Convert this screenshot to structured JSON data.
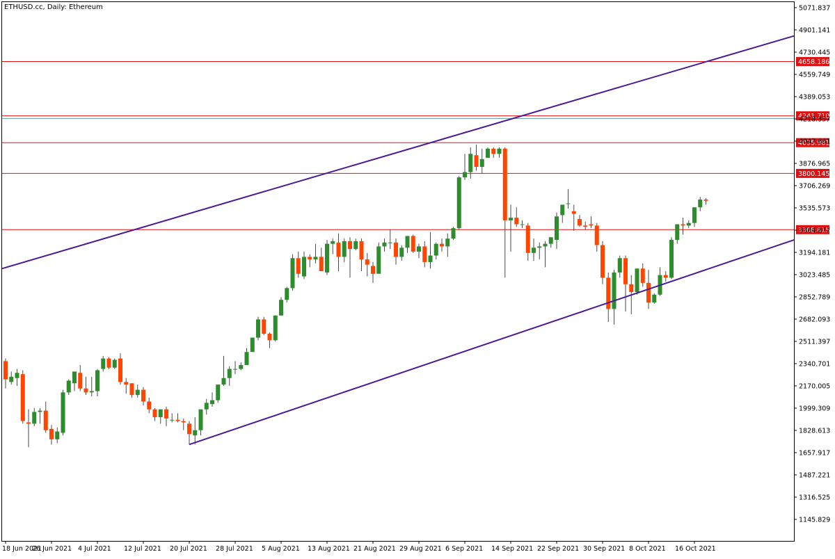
{
  "header": {
    "symbol_label": "ETHUSD.cc, Daily:  Ethereum"
  },
  "colors": {
    "background": "#ffffff",
    "frame": "#000000",
    "up": "#2e8b2e",
    "down": "#ff4500",
    "wick": "#4a4a4a",
    "level": "#e01010",
    "channel": "#4b1a94",
    "bid": "#5f9ea0"
  },
  "chart_data": {
    "type": "candlestick",
    "title": "",
    "symbol": "ETHUSD.cc",
    "timeframe": "Daily",
    "description": "Ethereum",
    "ylim": [
      1060,
      5130
    ],
    "price_axis_ticks": [
      "5071.837",
      "4901.141",
      "4730.445",
      "4559.749",
      "4389.053",
      "4218.357",
      "4047.661",
      "3876.965",
      "3706.269",
      "3535.573",
      "3364.877",
      "3194.181",
      "3023.485",
      "2852.789",
      "2682.093",
      "2511.397",
      "2340.701",
      "2170.005",
      "1999.309",
      "1828.613",
      "1657.917",
      "1487.221",
      "1316.525",
      "1145.829"
    ],
    "date_axis_ticks": [
      "18 Jun 2021",
      "26 Jun 2021",
      "4 Jul 2021",
      "12 Jul 2021",
      "20 Jul 2021",
      "28 Jul 2021",
      "5 Aug 2021",
      "13 Aug 2021",
      "21 Aug 2021",
      "29 Aug 2021",
      "6 Sep 2021",
      "14 Sep 2021",
      "22 Sep 2021",
      "30 Sep 2021",
      "8 Oct 2021",
      "16 Oct 2021"
    ],
    "level_labels": [
      "4658.186",
      "4241.710",
      "4035.981",
      "3800.145",
      "3368.615"
    ],
    "levels": [
      4658.186,
      4241.71,
      4035.981,
      3800.145,
      3368.615
    ],
    "bid_line": 4222,
    "candles": [
      {
        "date": "2021-06-18",
        "o": 2360,
        "h": 2380,
        "l": 2150,
        "c": 2220
      },
      {
        "date": "2021-06-19",
        "o": 2200,
        "h": 2280,
        "l": 2180,
        "c": 2240
      },
      {
        "date": "2021-06-20",
        "o": 2230,
        "h": 2300,
        "l": 2170,
        "c": 2270
      },
      {
        "date": "2021-06-21",
        "o": 2260,
        "h": 2290,
        "l": 1880,
        "c": 1900
      },
      {
        "date": "2021-06-22",
        "o": 1890,
        "h": 1990,
        "l": 1700,
        "c": 1880
      },
      {
        "date": "2021-06-23",
        "o": 1880,
        "h": 2000,
        "l": 1860,
        "c": 1970
      },
      {
        "date": "2021-06-24",
        "o": 1970,
        "h": 2000,
        "l": 1880,
        "c": 1980
      },
      {
        "date": "2021-06-25",
        "o": 1980,
        "h": 2050,
        "l": 1810,
        "c": 1830
      },
      {
        "date": "2021-06-26",
        "o": 1840,
        "h": 1870,
        "l": 1720,
        "c": 1760
      },
      {
        "date": "2021-06-27",
        "o": 1760,
        "h": 1850,
        "l": 1730,
        "c": 1820
      },
      {
        "date": "2021-06-28",
        "o": 1810,
        "h": 2140,
        "l": 1790,
        "c": 2120
      },
      {
        "date": "2021-06-29",
        "o": 2120,
        "h": 2220,
        "l": 2100,
        "c": 2210
      },
      {
        "date": "2021-06-30",
        "o": 2190,
        "h": 2280,
        "l": 2130,
        "c": 2280
      },
      {
        "date": "2021-07-01",
        "o": 2270,
        "h": 2330,
        "l": 2130,
        "c": 2150
      },
      {
        "date": "2021-07-02",
        "o": 2150,
        "h": 2240,
        "l": 2100,
        "c": 2120
      },
      {
        "date": "2021-07-03",
        "o": 2120,
        "h": 2240,
        "l": 2090,
        "c": 2130
      },
      {
        "date": "2021-07-04",
        "o": 2130,
        "h": 2300,
        "l": 2090,
        "c": 2290
      },
      {
        "date": "2021-07-05",
        "o": 2300,
        "h": 2400,
        "l": 2280,
        "c": 2380
      },
      {
        "date": "2021-07-06",
        "o": 2380,
        "h": 2390,
        "l": 2300,
        "c": 2310
      },
      {
        "date": "2021-07-07",
        "o": 2310,
        "h": 2380,
        "l": 2300,
        "c": 2370
      },
      {
        "date": "2021-07-08",
        "o": 2380,
        "h": 2420,
        "l": 2180,
        "c": 2200
      },
      {
        "date": "2021-07-09",
        "o": 2200,
        "h": 2230,
        "l": 2110,
        "c": 2180
      },
      {
        "date": "2021-07-10",
        "o": 2190,
        "h": 2190,
        "l": 2080,
        "c": 2100
      },
      {
        "date": "2021-07-11",
        "o": 2100,
        "h": 2180,
        "l": 2080,
        "c": 2140
      },
      {
        "date": "2021-07-12",
        "o": 2140,
        "h": 2160,
        "l": 2020,
        "c": 2050
      },
      {
        "date": "2021-07-13",
        "o": 2050,
        "h": 2080,
        "l": 1960,
        "c": 1990
      },
      {
        "date": "2021-07-14",
        "o": 1990,
        "h": 2000,
        "l": 1900,
        "c": 1930
      },
      {
        "date": "2021-07-15",
        "o": 1930,
        "h": 1990,
        "l": 1880,
        "c": 1990
      },
      {
        "date": "2021-07-16",
        "o": 1990,
        "h": 2010,
        "l": 1860,
        "c": 1920
      },
      {
        "date": "2021-07-17",
        "o": 1910,
        "h": 1960,
        "l": 1890,
        "c": 1910
      },
      {
        "date": "2021-07-18",
        "o": 1910,
        "h": 1960,
        "l": 1890,
        "c": 1900
      },
      {
        "date": "2021-07-19",
        "o": 1900,
        "h": 1920,
        "l": 1830,
        "c": 1890
      },
      {
        "date": "2021-07-20",
        "o": 1880,
        "h": 1900,
        "l": 1720,
        "c": 1800
      },
      {
        "date": "2021-07-21",
        "o": 1790,
        "h": 1930,
        "l": 1720,
        "c": 1830
      },
      {
        "date": "2021-07-22",
        "o": 1830,
        "h": 1970,
        "l": 1790,
        "c": 1990
      },
      {
        "date": "2021-07-23",
        "o": 1990,
        "h": 2070,
        "l": 1950,
        "c": 2040
      },
      {
        "date": "2021-07-24",
        "o": 2030,
        "h": 2120,
        "l": 2010,
        "c": 2060
      },
      {
        "date": "2021-07-25",
        "o": 2060,
        "h": 2180,
        "l": 2040,
        "c": 2180
      },
      {
        "date": "2021-07-26",
        "o": 2180,
        "h": 2400,
        "l": 2170,
        "c": 2230
      },
      {
        "date": "2021-07-27",
        "o": 2230,
        "h": 2320,
        "l": 2170,
        "c": 2300
      },
      {
        "date": "2021-07-28",
        "o": 2300,
        "h": 2360,
        "l": 2260,
        "c": 2300
      },
      {
        "date": "2021-07-29",
        "o": 2300,
        "h": 2350,
        "l": 2290,
        "c": 2330
      },
      {
        "date": "2021-07-30",
        "o": 2330,
        "h": 2460,
        "l": 2330,
        "c": 2430
      },
      {
        "date": "2021-07-31",
        "o": 2430,
        "h": 2530,
        "l": 2470,
        "c": 2540
      },
      {
        "date": "2021-08-01",
        "o": 2540,
        "h": 2700,
        "l": 2520,
        "c": 2680
      },
      {
        "date": "2021-08-02",
        "o": 2680,
        "h": 2700,
        "l": 2560,
        "c": 2570
      },
      {
        "date": "2021-08-03",
        "o": 2570,
        "h": 2580,
        "l": 2460,
        "c": 2520
      },
      {
        "date": "2021-08-04",
        "o": 2520,
        "h": 2710,
        "l": 2510,
        "c": 2710
      },
      {
        "date": "2021-08-05",
        "o": 2710,
        "h": 2850,
        "l": 2710,
        "c": 2830
      },
      {
        "date": "2021-08-06",
        "o": 2830,
        "h": 2930,
        "l": 2810,
        "c": 2920
      },
      {
        "date": "2021-08-07",
        "o": 2920,
        "h": 3180,
        "l": 2900,
        "c": 3150
      },
      {
        "date": "2021-08-08",
        "o": 3150,
        "h": 3200,
        "l": 3000,
        "c": 3030
      },
      {
        "date": "2021-08-09",
        "o": 3010,
        "h": 3200,
        "l": 2990,
        "c": 3160
      },
      {
        "date": "2021-08-10",
        "o": 3160,
        "h": 3180,
        "l": 3080,
        "c": 3140
      },
      {
        "date": "2021-08-11",
        "o": 3140,
        "h": 3260,
        "l": 3110,
        "c": 3160
      },
      {
        "date": "2021-08-12",
        "o": 3160,
        "h": 3230,
        "l": 3050,
        "c": 3050
      },
      {
        "date": "2021-08-13",
        "o": 3040,
        "h": 3290,
        "l": 3020,
        "c": 3260
      },
      {
        "date": "2021-08-14",
        "o": 3260,
        "h": 3300,
        "l": 3180,
        "c": 3280
      },
      {
        "date": "2021-08-15",
        "o": 3270,
        "h": 3340,
        "l": 3050,
        "c": 3160
      },
      {
        "date": "2021-08-16",
        "o": 3160,
        "h": 3300,
        "l": 3120,
        "c": 3280
      },
      {
        "date": "2021-08-17",
        "o": 3280,
        "h": 3310,
        "l": 3000,
        "c": 3220
      },
      {
        "date": "2021-08-18",
        "o": 3220,
        "h": 3300,
        "l": 3210,
        "c": 3280
      },
      {
        "date": "2021-08-19",
        "o": 3280,
        "h": 3300,
        "l": 3050,
        "c": 3140
      },
      {
        "date": "2021-08-20",
        "o": 3140,
        "h": 3190,
        "l": 3010,
        "c": 3100
      },
      {
        "date": "2021-08-21",
        "o": 3090,
        "h": 3120,
        "l": 2960,
        "c": 3030
      },
      {
        "date": "2021-08-22",
        "o": 3030,
        "h": 3270,
        "l": 3030,
        "c": 3240
      },
      {
        "date": "2021-08-23",
        "o": 3240,
        "h": 3300,
        "l": 3200,
        "c": 3270
      },
      {
        "date": "2021-08-24",
        "o": 3270,
        "h": 3370,
        "l": 3220,
        "c": 3270
      },
      {
        "date": "2021-08-25",
        "o": 3270,
        "h": 3300,
        "l": 3100,
        "c": 3160
      },
      {
        "date": "2021-08-26",
        "o": 3160,
        "h": 3250,
        "l": 3130,
        "c": 3230
      },
      {
        "date": "2021-08-27",
        "o": 3230,
        "h": 3320,
        "l": 3190,
        "c": 3320
      },
      {
        "date": "2021-08-28",
        "o": 3320,
        "h": 3330,
        "l": 3190,
        "c": 3200
      },
      {
        "date": "2021-08-29",
        "o": 3200,
        "h": 3260,
        "l": 3150,
        "c": 3240
      },
      {
        "date": "2021-08-30",
        "o": 3240,
        "h": 3280,
        "l": 3080,
        "c": 3120
      },
      {
        "date": "2021-08-31",
        "o": 3120,
        "h": 3350,
        "l": 3070,
        "c": 3170
      },
      {
        "date": "2021-09-01",
        "o": 3170,
        "h": 3270,
        "l": 3140,
        "c": 3260
      },
      {
        "date": "2021-09-02",
        "o": 3260,
        "h": 3300,
        "l": 3200,
        "c": 3240
      },
      {
        "date": "2021-09-03",
        "o": 3240,
        "h": 3340,
        "l": 3160,
        "c": 3300
      },
      {
        "date": "2021-09-04",
        "o": 3300,
        "h": 3390,
        "l": 3290,
        "c": 3380
      },
      {
        "date": "2021-09-05",
        "o": 3380,
        "h": 3780,
        "l": 3370,
        "c": 3770
      },
      {
        "date": "2021-09-06",
        "o": 3770,
        "h": 3950,
        "l": 3750,
        "c": 3810
      },
      {
        "date": "2021-09-07",
        "o": 3810,
        "h": 4000,
        "l": 3760,
        "c": 3950
      },
      {
        "date": "2021-09-08",
        "o": 3940,
        "h": 4020,
        "l": 3820,
        "c": 3850
      },
      {
        "date": "2021-09-09",
        "o": 3850,
        "h": 3990,
        "l": 3800,
        "c": 3910
      },
      {
        "date": "2021-09-10",
        "o": 3920,
        "h": 4000,
        "l": 3920,
        "c": 3990
      },
      {
        "date": "2021-09-11",
        "o": 3990,
        "h": 4000,
        "l": 3920,
        "c": 3950
      },
      {
        "date": "2021-09-12",
        "o": 3950,
        "h": 4000,
        "l": 3920,
        "c": 3990
      },
      {
        "date": "2021-09-13",
        "o": 3990,
        "h": 4000,
        "l": 3000,
        "c": 3440
      },
      {
        "date": "2021-09-14",
        "o": 3440,
        "h": 3560,
        "l": 3200,
        "c": 3460
      },
      {
        "date": "2021-09-15",
        "o": 3460,
        "h": 3540,
        "l": 3390,
        "c": 3410
      },
      {
        "date": "2021-09-16",
        "o": 3410,
        "h": 3440,
        "l": 3380,
        "c": 3410
      },
      {
        "date": "2021-09-17",
        "o": 3400,
        "h": 3420,
        "l": 3130,
        "c": 3190
      },
      {
        "date": "2021-09-18",
        "o": 3190,
        "h": 3300,
        "l": 3130,
        "c": 3230
      },
      {
        "date": "2021-09-19",
        "o": 3230,
        "h": 3270,
        "l": 3140,
        "c": 3240
      },
      {
        "date": "2021-09-20",
        "o": 3240,
        "h": 3280,
        "l": 3080,
        "c": 3260
      },
      {
        "date": "2021-09-21",
        "o": 3260,
        "h": 3310,
        "l": 3230,
        "c": 3310
      },
      {
        "date": "2021-09-22",
        "o": 3290,
        "h": 3500,
        "l": 3220,
        "c": 3470
      },
      {
        "date": "2021-09-23",
        "o": 3480,
        "h": 3560,
        "l": 3420,
        "c": 3560
      },
      {
        "date": "2021-09-24",
        "o": 3570,
        "h": 3680,
        "l": 3530,
        "c": 3570
      },
      {
        "date": "2021-09-25",
        "o": 3510,
        "h": 3560,
        "l": 3360,
        "c": 3490
      },
      {
        "date": "2021-09-26",
        "o": 3450,
        "h": 3480,
        "l": 3390,
        "c": 3400
      },
      {
        "date": "2021-09-27",
        "o": 3400,
        "h": 3430,
        "l": 3370,
        "c": 3390
      },
      {
        "date": "2021-09-28",
        "o": 3410,
        "h": 3470,
        "l": 3380,
        "c": 3400
      },
      {
        "date": "2021-09-29",
        "o": 3400,
        "h": 3420,
        "l": 3200,
        "c": 3250
      },
      {
        "date": "2021-09-30",
        "o": 3250,
        "h": 3280,
        "l": 2950,
        "c": 3000
      },
      {
        "date": "2021-10-01",
        "o": 3000,
        "h": 3040,
        "l": 2660,
        "c": 2760
      },
      {
        "date": "2021-10-02",
        "o": 2760,
        "h": 3060,
        "l": 2640,
        "c": 3040
      },
      {
        "date": "2021-10-03",
        "o": 3040,
        "h": 3170,
        "l": 3000,
        "c": 3150
      },
      {
        "date": "2021-10-04",
        "o": 3150,
        "h": 3170,
        "l": 2740,
        "c": 2950
      },
      {
        "date": "2021-10-05",
        "o": 2950,
        "h": 3020,
        "l": 2720,
        "c": 2890
      },
      {
        "date": "2021-10-06",
        "o": 2890,
        "h": 3070,
        "l": 2870,
        "c": 3070
      },
      {
        "date": "2021-10-07",
        "o": 3070,
        "h": 3110,
        "l": 2930,
        "c": 2960
      },
      {
        "date": "2021-10-08",
        "o": 2960,
        "h": 3060,
        "l": 2760,
        "c": 2810
      },
      {
        "date": "2021-10-09",
        "o": 2810,
        "h": 2880,
        "l": 2800,
        "c": 2870
      },
      {
        "date": "2021-10-10",
        "o": 2870,
        "h": 3080,
        "l": 2860,
        "c": 3020
      },
      {
        "date": "2021-10-11",
        "o": 3020,
        "h": 3050,
        "l": 2970,
        "c": 3000
      },
      {
        "date": "2021-10-12",
        "o": 3000,
        "h": 3310,
        "l": 2990,
        "c": 3290
      },
      {
        "date": "2021-10-13",
        "o": 3290,
        "h": 3410,
        "l": 3260,
        "c": 3410
      },
      {
        "date": "2021-10-14",
        "o": 3410,
        "h": 3460,
        "l": 3330,
        "c": 3400
      },
      {
        "date": "2021-10-15",
        "o": 3400,
        "h": 3440,
        "l": 3380,
        "c": 3420
      },
      {
        "date": "2021-10-16",
        "o": 3420,
        "h": 3540,
        "l": 3390,
        "c": 3540
      },
      {
        "date": "2021-10-17",
        "o": 3540,
        "h": 3620,
        "l": 3510,
        "c": 3600
      },
      {
        "date": "2021-10-18",
        "o": 3600,
        "h": 3610,
        "l": 3560,
        "c": 3590
      }
    ]
  }
}
